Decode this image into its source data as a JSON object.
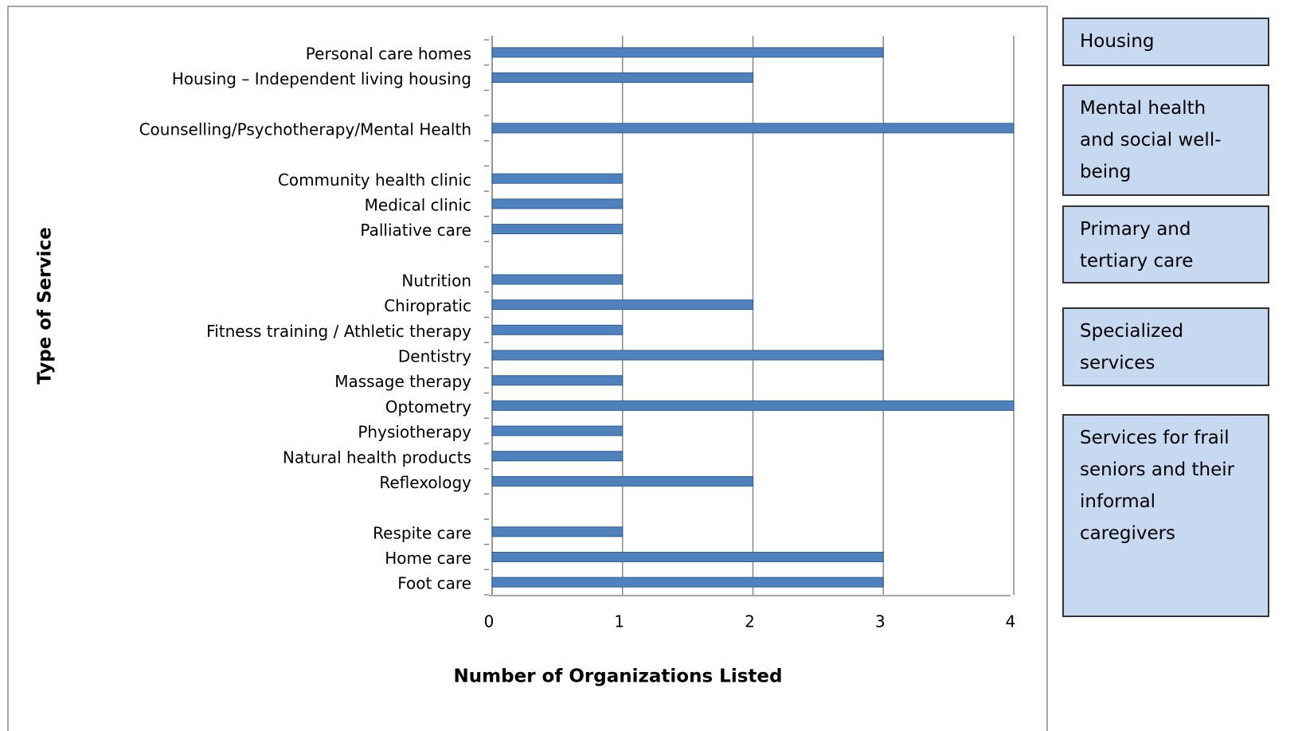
{
  "chart_data": {
    "type": "bar",
    "orientation": "horizontal",
    "x_label": "Number of Organizations Listed",
    "y_label": "Type of Service",
    "categories": [
      "Personal care homes",
      "Housing – Independent living housing",
      null,
      "Counselling/Psychotherapy/Mental Health",
      null,
      "Community health clinic",
      "Medical clinic",
      "Palliative care",
      null,
      "Nutrition",
      "Chiropratic",
      "Fitness training / Athletic therapy",
      "Dentistry",
      "Massage therapy",
      "Optometry",
      "Physiotherapy",
      "Natural health products",
      "Reflexology",
      null,
      "Respite care",
      "Home care",
      "Foot care"
    ],
    "values": [
      3,
      2,
      null,
      4,
      null,
      1,
      1,
      1,
      null,
      1,
      2,
      1,
      3,
      1,
      4,
      1,
      1,
      2,
      null,
      1,
      3,
      3
    ],
    "color": "#4f81bd",
    "xlim": [
      0,
      4
    ],
    "xticks": [
      0,
      1,
      2,
      3,
      4
    ],
    "grid": true,
    "group_labels": [
      "Housing",
      "Mental health and social well-being",
      "Primary and tertiary care",
      "Specialized services",
      "Services for frail seniors and their informal caregivers"
    ]
  }
}
